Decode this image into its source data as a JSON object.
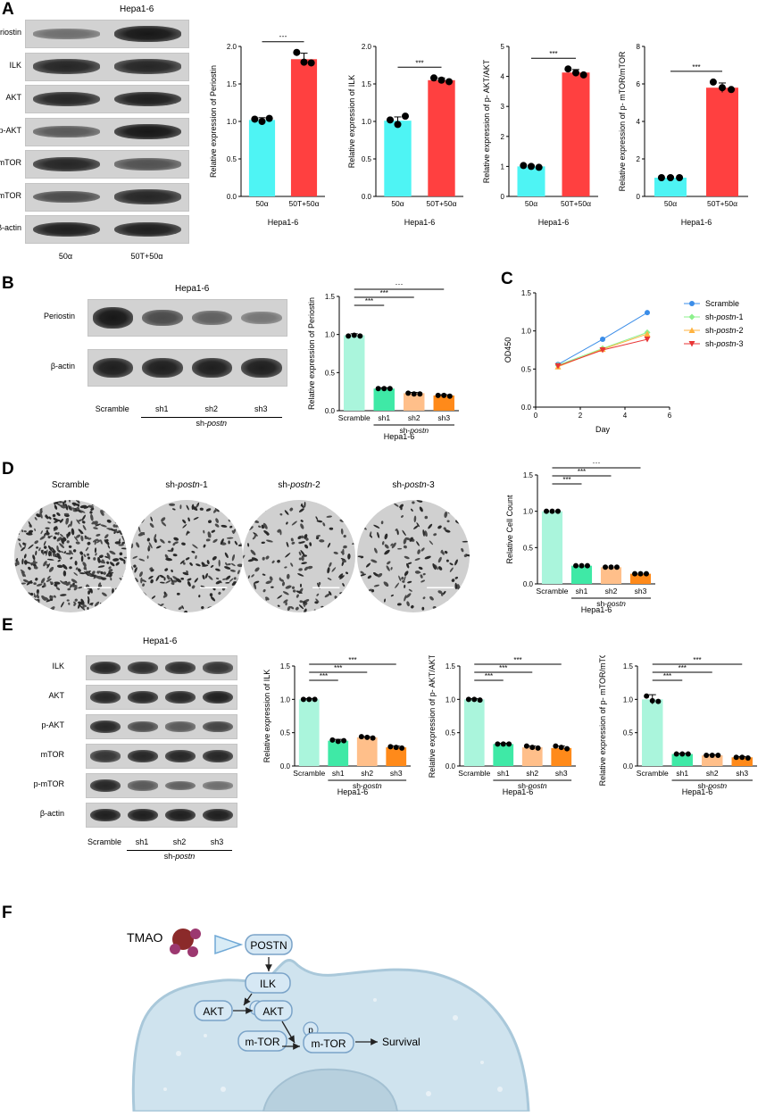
{
  "panels": {
    "A": "A",
    "B": "B",
    "C": "C",
    "D": "D",
    "E": "E",
    "F": "F"
  },
  "panel_a": {
    "blot_title": "Hepa1-6",
    "rows": [
      "Periostin",
      "ILK",
      "AKT",
      "p-AKT",
      "mTOR",
      "p-mTOR",
      "β-actin"
    ],
    "row_intensity": [
      [
        0.35,
        0.95
      ],
      [
        0.85,
        0.85
      ],
      [
        0.85,
        0.9
      ],
      [
        0.5,
        0.95
      ],
      [
        0.85,
        0.55
      ],
      [
        0.6,
        0.85
      ],
      [
        0.9,
        0.9
      ]
    ],
    "lanes": [
      "50α",
      "50T+50α"
    ]
  },
  "panel_b": {
    "blot_title": "Hepa1-6",
    "rows": [
      "Periostin",
      "β-actin"
    ],
    "row_intensity": [
      [
        0.95,
        0.6,
        0.45,
        0.3
      ],
      [
        0.9,
        0.9,
        0.9,
        0.9
      ]
    ],
    "lanes": [
      "Scramble",
      "sh1",
      "sh2",
      "sh3"
    ],
    "group_label": "sh-",
    "group_label_italic": "postn"
  },
  "panel_d": {
    "labels": [
      "Scramble",
      "sh-",
      "sh-",
      "sh-"
    ],
    "label_italic": [
      "",
      "postn",
      "postn",
      "postn"
    ],
    "label_suffix": [
      "",
      "-1",
      "-2",
      "-3"
    ],
    "densities": [
      1.0,
      0.45,
      0.4,
      0.35
    ]
  },
  "panel_e": {
    "blot_title": "Hepa1-6",
    "rows": [
      "ILK",
      "AKT",
      "p-AKT",
      "mTOR",
      "p-mTOR",
      "β-actin"
    ],
    "row_intensity": [
      [
        0.85,
        0.8,
        0.8,
        0.75
      ],
      [
        0.85,
        0.85,
        0.85,
        0.9
      ],
      [
        0.85,
        0.6,
        0.5,
        0.65
      ],
      [
        0.75,
        0.85,
        0.85,
        0.85
      ],
      [
        0.85,
        0.5,
        0.45,
        0.35
      ],
      [
        0.9,
        0.9,
        0.9,
        0.9
      ]
    ],
    "lanes": [
      "Scramble",
      "sh1",
      "sh2",
      "sh3"
    ],
    "group_label": "sh-",
    "group_label_italic": "postn"
  },
  "panel_f": {
    "tmao": "TMAO",
    "postn": "POSTN",
    "ilk": "ILK",
    "akt1": "AKT",
    "p1": "p",
    "akt2": "AKT",
    "mtor1": "m-TOR",
    "p2": "p",
    "mtor2": "m-TOR",
    "survival": "Survival"
  },
  "colors": {
    "cyan": "#4ef4f4",
    "red": "#ff4040",
    "mint": "#aaf5dc",
    "green": "#3fe9a6",
    "peach": "#ffbf8a",
    "orange": "#ff8a1a",
    "blue": "#3b8de8",
    "lightgreen": "#8cf08c",
    "lightorange": "#ffb340",
    "redline": "#e83535"
  },
  "chart_data": [
    {
      "id": "a1",
      "type": "bar",
      "categories": [
        "50α",
        "50T+50α"
      ],
      "values": [
        1.02,
        1.83
      ],
      "points": [
        [
          1.03,
          1.0,
          1.04
        ],
        [
          1.92,
          1.79,
          1.78
        ]
      ],
      "error": [
        0.03,
        0.08
      ],
      "ylabel": "Relative expression of Periostin",
      "xlabel": "Hepa1-6",
      "ylim": [
        0,
        2.0
      ],
      "yticks": [
        "0.0",
        "0.5",
        "1.0",
        "1.5",
        "2.0"
      ],
      "colors": [
        "#4ef4f4",
        "#ff4040"
      ],
      "sig": [
        {
          "a": 0,
          "b": 1,
          "text": "***"
        }
      ]
    },
    {
      "id": "a2",
      "type": "bar",
      "categories": [
        "50α",
        "50T+50α"
      ],
      "values": [
        1.01,
        1.55
      ],
      "points": [
        [
          1.02,
          0.96,
          1.07
        ],
        [
          1.58,
          1.55,
          1.53
        ]
      ],
      "error": [
        0.05,
        0.03
      ],
      "ylabel": "Relative expression of ILK",
      "xlabel": "Hepa1-6",
      "ylim": [
        0,
        2.0
      ],
      "yticks": [
        "0.0",
        "0.5",
        "1.0",
        "1.5",
        "2.0"
      ],
      "colors": [
        "#4ef4f4",
        "#ff4040"
      ],
      "sig": [
        {
          "a": 0,
          "b": 1,
          "text": "***"
        }
      ]
    },
    {
      "id": "a3",
      "type": "bar",
      "categories": [
        "50α",
        "50T+50α"
      ],
      "values": [
        1.0,
        4.13
      ],
      "points": [
        [
          1.03,
          1.0,
          0.97
        ],
        [
          4.25,
          4.12,
          4.05
        ]
      ],
      "error": [
        0.04,
        0.1
      ],
      "ylabel": "Relative expression of p- AKT/AKT",
      "xlabel": "Hepa1-6",
      "ylim": [
        0,
        5
      ],
      "yticks": [
        "0",
        "1",
        "2",
        "3",
        "4",
        "5"
      ],
      "colors": [
        "#4ef4f4",
        "#ff4040"
      ],
      "sig": [
        {
          "a": 0,
          "b": 1,
          "text": "***"
        }
      ]
    },
    {
      "id": "a4",
      "type": "bar",
      "categories": [
        "50α",
        "50T+50α"
      ],
      "values": [
        1.0,
        5.8
      ],
      "points": [
        [
          1.0,
          1.0,
          1.0
        ],
        [
          6.1,
          5.8,
          5.7
        ]
      ],
      "error": [
        0.05,
        0.25
      ],
      "ylabel": "Relative expression of p- mTOR/mTOR",
      "xlabel": "Hepa1-6",
      "ylim": [
        0,
        8
      ],
      "yticks": [
        "0",
        "2",
        "4",
        "6",
        "8"
      ],
      "colors": [
        "#4ef4f4",
        "#ff4040"
      ],
      "sig": [
        {
          "a": 0,
          "b": 1,
          "text": "***"
        }
      ]
    },
    {
      "id": "b1",
      "type": "bar",
      "categories": [
        "Scramble",
        "sh1",
        "sh2",
        "sh3"
      ],
      "values": [
        0.99,
        0.29,
        0.23,
        0.2
      ],
      "points": [
        [
          0.98,
          0.99,
          0.98
        ],
        [
          0.29,
          0.29,
          0.29
        ],
        [
          0.23,
          0.22,
          0.22
        ],
        [
          0.2,
          0.2,
          0.19
        ]
      ],
      "error": [
        0.02,
        0.01,
        0.01,
        0.01
      ],
      "ylabel": "Relative expression of Periostin",
      "xlabel": "Hepa1-6",
      "group": "sh-",
      "group_italic": "postn",
      "ylim": [
        0,
        1.5
      ],
      "yticks": [
        "0.0",
        "0.5",
        "1.0",
        "1.5"
      ],
      "colors": [
        "#aaf5dc",
        "#3fe9a6",
        "#ffbf8a",
        "#ff8a1a"
      ],
      "sig": [
        {
          "a": 0,
          "b": 1,
          "text": "***"
        },
        {
          "a": 0,
          "b": 2,
          "text": "***"
        },
        {
          "a": 0,
          "b": 3,
          "text": "***"
        }
      ]
    },
    {
      "id": "c",
      "type": "line",
      "xlabel": "Day",
      "ylabel": "OD450",
      "xlim": [
        0,
        6
      ],
      "ylim": [
        0,
        1.5
      ],
      "xticks": [
        "0",
        "2",
        "4",
        "6"
      ],
      "yticks": [
        "0.0",
        "0.5",
        "1.0",
        "1.5"
      ],
      "x": [
        1,
        3,
        5
      ],
      "series": [
        {
          "name": "Scramble",
          "values": [
            0.56,
            0.89,
            1.24
          ],
          "color": "#3b8de8",
          "marker": "circle"
        },
        {
          "name": "sh-postn-1",
          "values": [
            0.55,
            0.77,
            0.98
          ],
          "color": "#8cf08c",
          "marker": "diamond"
        },
        {
          "name": "sh-postn-2",
          "values": [
            0.53,
            0.76,
            0.96
          ],
          "color": "#ffb340",
          "marker": "triangle-up"
        },
        {
          "name": "sh-postn-3",
          "values": [
            0.54,
            0.75,
            0.89
          ],
          "color": "#e83535",
          "marker": "triangle-down"
        }
      ],
      "legend": [
        {
          "pre": "Scramble",
          "it": "",
          "post": ""
        },
        {
          "pre": "sh-",
          "it": "postn",
          "post": "-1"
        },
        {
          "pre": "sh-",
          "it": "postn",
          "post": "-2"
        },
        {
          "pre": "sh-",
          "it": "postn",
          "post": "-3"
        }
      ]
    },
    {
      "id": "d1",
      "type": "bar",
      "categories": [
        "Scramble",
        "sh1",
        "sh2",
        "sh3"
      ],
      "values": [
        1.0,
        0.25,
        0.23,
        0.14
      ],
      "points": [
        [
          1.0,
          1.0,
          1.0
        ],
        [
          0.25,
          0.25,
          0.25
        ],
        [
          0.23,
          0.23,
          0.23
        ],
        [
          0.14,
          0.14,
          0.14
        ]
      ],
      "error": [
        0,
        0,
        0,
        0
      ],
      "ylabel": "Relative Cell Count",
      "xlabel": "Hepa1-6",
      "group": "sh-",
      "group_italic": "postn",
      "ylim": [
        0,
        1.5
      ],
      "yticks": [
        "0.0",
        "0.5",
        "1.0",
        "1.5"
      ],
      "colors": [
        "#aaf5dc",
        "#3fe9a6",
        "#ffbf8a",
        "#ff8a1a"
      ],
      "sig": [
        {
          "a": 0,
          "b": 1,
          "text": "***"
        },
        {
          "a": 0,
          "b": 2,
          "text": "***"
        },
        {
          "a": 0,
          "b": 3,
          "text": "***"
        }
      ]
    },
    {
      "id": "e1",
      "type": "bar",
      "categories": [
        "Scramble",
        "sh1",
        "sh2",
        "sh3"
      ],
      "values": [
        1.0,
        0.38,
        0.43,
        0.28
      ],
      "points": [
        [
          1.0,
          1.0,
          1.0
        ],
        [
          0.39,
          0.37,
          0.38
        ],
        [
          0.44,
          0.43,
          0.42
        ],
        [
          0.29,
          0.28,
          0.27
        ]
      ],
      "error": [
        0.01,
        0.02,
        0.01,
        0.02
      ],
      "ylabel": "Relative expression of ILK",
      "xlabel": "Hepa1-6",
      "group": "sh-",
      "group_italic": "postn",
      "ylim": [
        0,
        1.5
      ],
      "yticks": [
        "0.0",
        "0.5",
        "1.0",
        "1.5"
      ],
      "colors": [
        "#aaf5dc",
        "#3fe9a6",
        "#ffbf8a",
        "#ff8a1a"
      ],
      "sig": [
        {
          "a": 0,
          "b": 1,
          "text": "***"
        },
        {
          "a": 0,
          "b": 2,
          "text": "***"
        },
        {
          "a": 0,
          "b": 3,
          "text": "***"
        }
      ]
    },
    {
      "id": "e2",
      "type": "bar",
      "categories": [
        "Scramble",
        "sh1",
        "sh2",
        "sh3"
      ],
      "values": [
        1.0,
        0.33,
        0.28,
        0.27
      ],
      "points": [
        [
          1.0,
          1.0,
          0.99
        ],
        [
          0.33,
          0.33,
          0.33
        ],
        [
          0.3,
          0.28,
          0.27
        ],
        [
          0.3,
          0.28,
          0.26
        ]
      ],
      "error": [
        0.01,
        0.01,
        0.02,
        0.03
      ],
      "ylabel": "Relative expression of p- AKT/AKT",
      "xlabel": "Hepa1-6",
      "group": "sh-",
      "group_italic": "postn",
      "ylim": [
        0,
        1.5
      ],
      "yticks": [
        "0.0",
        "0.5",
        "1.0",
        "1.5"
      ],
      "colors": [
        "#aaf5dc",
        "#3fe9a6",
        "#ffbf8a",
        "#ff8a1a"
      ],
      "sig": [
        {
          "a": 0,
          "b": 1,
          "text": "***"
        },
        {
          "a": 0,
          "b": 2,
          "text": "***"
        },
        {
          "a": 0,
          "b": 3,
          "text": "***"
        }
      ]
    },
    {
      "id": "e3",
      "type": "bar",
      "categories": [
        "Scramble",
        "sh1",
        "sh2",
        "sh3"
      ],
      "values": [
        1.0,
        0.18,
        0.16,
        0.13
      ],
      "points": [
        [
          1.05,
          0.98,
          0.97
        ],
        [
          0.18,
          0.18,
          0.18
        ],
        [
          0.16,
          0.16,
          0.16
        ],
        [
          0.13,
          0.13,
          0.12
        ]
      ],
      "error": [
        0.07,
        0.01,
        0.01,
        0.01
      ],
      "ylabel": "Relative expression of p- mTOR/mTOR",
      "xlabel": "Hepa1-6",
      "group": "sh-",
      "group_italic": "postn",
      "ylim": [
        0,
        1.5
      ],
      "yticks": [
        "0.0",
        "0.5",
        "1.0",
        "1.5"
      ],
      "colors": [
        "#aaf5dc",
        "#3fe9a6",
        "#ffbf8a",
        "#ff8a1a"
      ],
      "sig": [
        {
          "a": 0,
          "b": 1,
          "text": "***"
        },
        {
          "a": 0,
          "b": 2,
          "text": "***"
        },
        {
          "a": 0,
          "b": 3,
          "text": "***"
        }
      ]
    }
  ]
}
